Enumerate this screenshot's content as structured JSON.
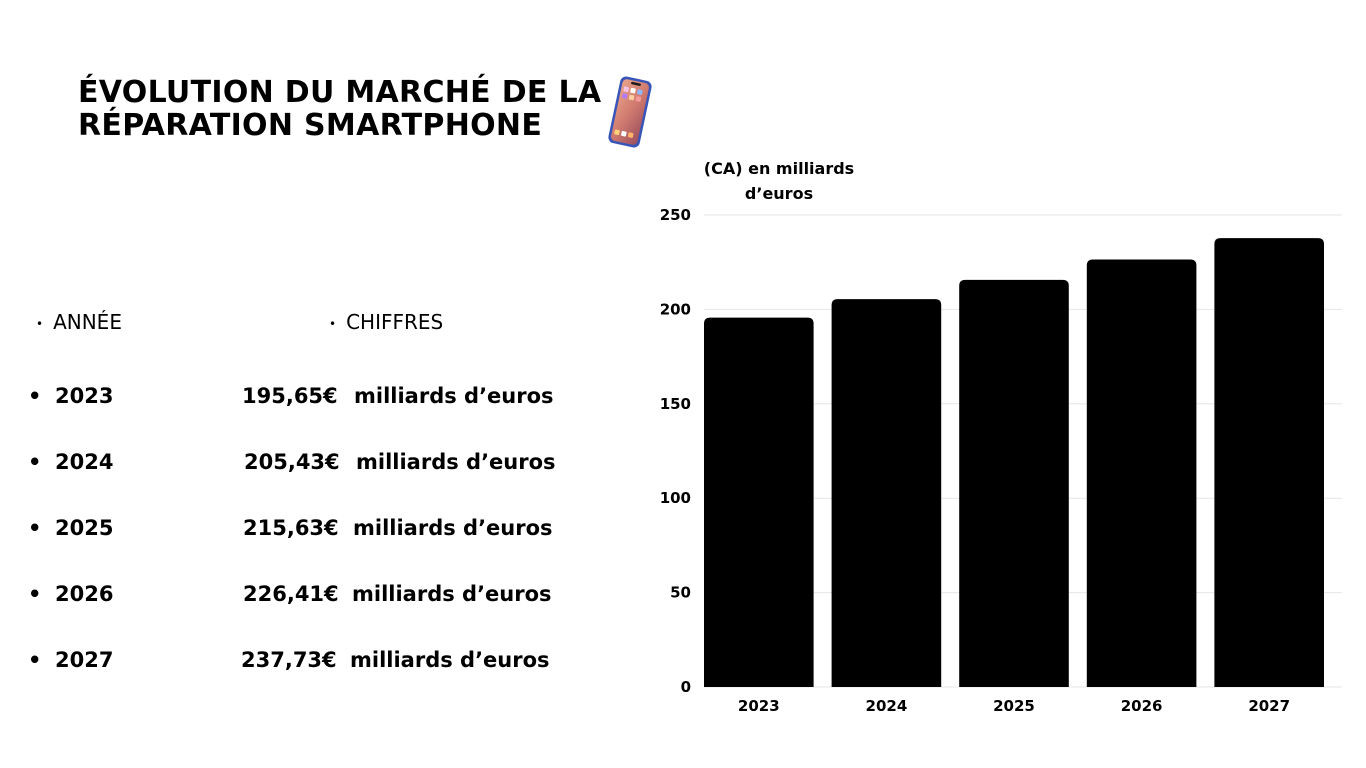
{
  "title": {
    "line1": "ÉVOLUTION DU MARCHÉ DE LA",
    "line2": "RÉPARATION SMARTPHONE",
    "icon": "smartphone-icon"
  },
  "table": {
    "headers": {
      "year": "ANNÉE",
      "value": "CHIFFRES"
    },
    "bullet": "•",
    "rows": [
      {
        "year": "2023",
        "value": "195,65€",
        "unit": "milliards d’euros"
      },
      {
        "year": "2024",
        "value": "205,43€",
        "unit": "milliards d’euros"
      },
      {
        "year": "2025",
        "value": "215,63€",
        "unit": "milliards d’euros"
      },
      {
        "year": "2026",
        "value": "226,41€",
        "unit": "milliards d’euros"
      },
      {
        "year": "2027",
        "value": "237,73€",
        "unit": "milliards d’euros"
      }
    ]
  },
  "chart_data": {
    "type": "bar",
    "title": "",
    "ylabel": "(CA) en milliards d’euros",
    "xlabel": "",
    "categories": [
      "2023",
      "2024",
      "2025",
      "2026",
      "2027"
    ],
    "values": [
      195.65,
      205.43,
      215.63,
      226.41,
      237.73
    ],
    "ylim": [
      0,
      250
    ],
    "yticks": [
      0,
      50,
      100,
      150,
      200,
      250
    ],
    "grid": true,
    "bar_color": "#000000",
    "grid_color": "#e6e6e6"
  }
}
